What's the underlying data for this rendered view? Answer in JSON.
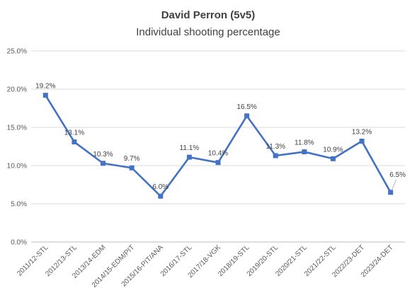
{
  "chart_data": {
    "type": "line",
    "title": "David Perron (5v5)",
    "subtitle": "Individual shooting percentage",
    "xlabel": "",
    "ylabel": "",
    "categories": [
      "2011/12-STL",
      "2012/13-STL",
      "2013/14-EDM",
      "2014/15-EDM/PIT",
      "2015/16-PIT/ANA",
      "2016/17-STL",
      "2017/18-VGK",
      "2018/19-STL",
      "2019/20-STL",
      "2020/21-STL",
      "2021/22-STL",
      "2022/23-DET",
      "2023/24-DET"
    ],
    "series": [
      {
        "values": [
          19.2,
          13.1,
          10.3,
          9.7,
          6.0,
          11.1,
          10.4,
          16.5,
          11.3,
          11.8,
          10.9,
          13.2,
          6.5
        ],
        "labels": [
          "19.2%",
          "13.1%",
          "10.3%",
          "9.7%",
          "6.0%",
          "11.1%",
          "10.4%",
          "16.5%",
          "11.3%",
          "11.8%",
          "10.9%",
          "13.2%",
          "6.5%"
        ],
        "color": "#4472C4"
      }
    ],
    "yticks": [
      "0.0%",
      "5.0%",
      "10.0%",
      "15.0%",
      "20.0%",
      "25.0%"
    ],
    "ylim": [
      0,
      25
    ],
    "grid": true,
    "legend": "none"
  }
}
